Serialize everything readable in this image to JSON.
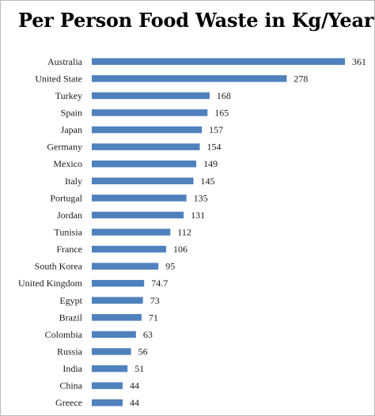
{
  "chart_data": {
    "type": "bar",
    "orientation": "horizontal",
    "title": "Per Person Food Waste in Kg/Year",
    "xlabel": "",
    "ylabel": "",
    "grid": false,
    "legend": "none",
    "bar_color": "#4f81bd",
    "xlim": [
      0,
      370
    ],
    "categories": [
      "Australia",
      "United State",
      "Turkey",
      "Spain",
      "Japan",
      "Germany",
      "Mexico",
      "Italy",
      "Portugal",
      "Jordan",
      "Tunisia",
      "France",
      "South Korea",
      "United Kingdom",
      "Egypt",
      "Brazil",
      "Colombia",
      "Russia",
      "India",
      "China",
      "Greece"
    ],
    "values": [
      361,
      278,
      168,
      165,
      157,
      154,
      149,
      145,
      135,
      131,
      112,
      106,
      95,
      74.7,
      73,
      71,
      63,
      56,
      51,
      44,
      44
    ],
    "value_labels": [
      "361",
      "278",
      "168",
      "165",
      "157",
      "154",
      "149",
      "145",
      "135",
      "131",
      "112",
      "106",
      "95",
      "74.7",
      "73",
      "71",
      "63",
      "56",
      "51",
      "44",
      "44"
    ]
  }
}
